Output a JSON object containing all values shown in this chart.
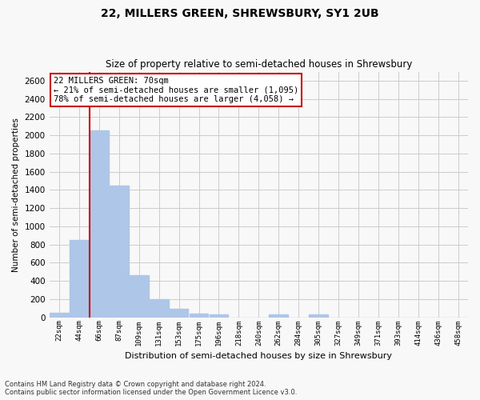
{
  "title": "22, MILLERS GREEN, SHREWSBURY, SY1 2UB",
  "subtitle": "Size of property relative to semi-detached houses in Shrewsbury",
  "xlabel": "Distribution of semi-detached houses by size in Shrewsbury",
  "ylabel": "Number of semi-detached properties",
  "bar_labels": [
    "22sqm",
    "44sqm",
    "66sqm",
    "87sqm",
    "109sqm",
    "131sqm",
    "153sqm",
    "175sqm",
    "196sqm",
    "218sqm",
    "240sqm",
    "262sqm",
    "284sqm",
    "305sqm",
    "327sqm",
    "349sqm",
    "371sqm",
    "393sqm",
    "414sqm",
    "436sqm",
    "458sqm"
  ],
  "bar_values": [
    50,
    850,
    2050,
    1450,
    460,
    200,
    90,
    40,
    30,
    0,
    0,
    30,
    0,
    30,
    0,
    0,
    0,
    0,
    0,
    0,
    0
  ],
  "bar_color": "#aec6e8",
  "vline_index": 2,
  "vline_color": "#cc0000",
  "annotation_text": "22 MILLERS GREEN: 70sqm\n← 21% of semi-detached houses are smaller (1,095)\n78% of semi-detached houses are larger (4,058) →",
  "annotation_box_color": "#ffffff",
  "annotation_box_edge": "#cc0000",
  "ylim": [
    0,
    2700
  ],
  "yticks": [
    0,
    200,
    400,
    600,
    800,
    1000,
    1200,
    1400,
    1600,
    1800,
    2000,
    2200,
    2400,
    2600
  ],
  "footnote1": "Contains HM Land Registry data © Crown copyright and database right 2024.",
  "footnote2": "Contains public sector information licensed under the Open Government Licence v3.0.",
  "bg_color": "#f8f8f8",
  "grid_color": "#cccccc",
  "title_fontsize": 10,
  "subtitle_fontsize": 8.5
}
